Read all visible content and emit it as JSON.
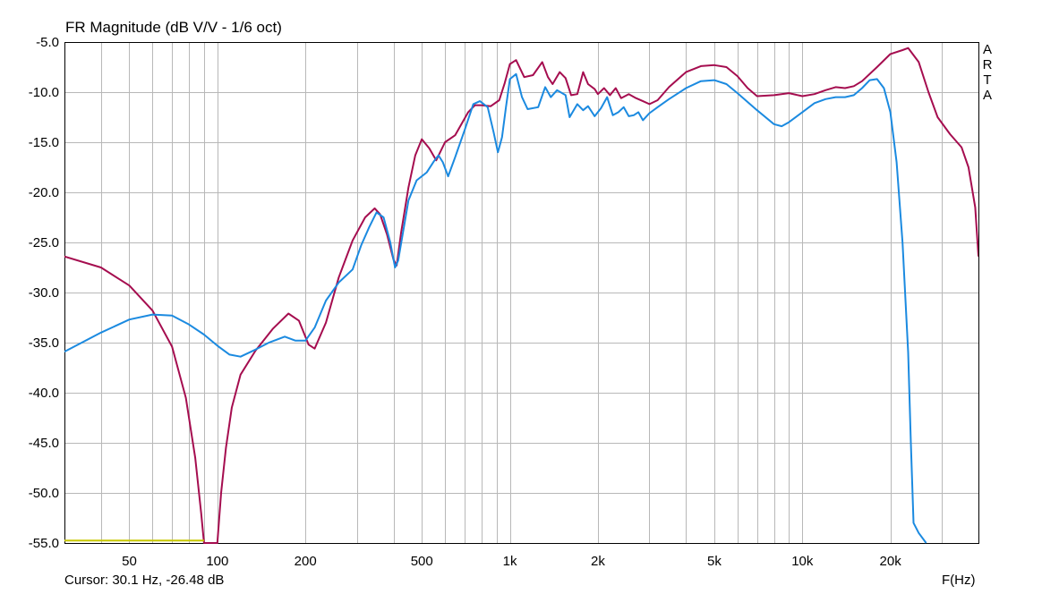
{
  "window": {
    "title": "FR Magnitude (dB V/V - 1/6 oct)"
  },
  "branding": {
    "letters": [
      "A",
      "R",
      "T",
      "A"
    ]
  },
  "status": {
    "cursor": "Cursor: 30.1 Hz, -26.48 dB",
    "x_unit": "F(Hz)"
  },
  "chart_data": {
    "type": "line",
    "title": "FR Magnitude (dB V/V - 1/6 oct)",
    "xlabel": "F(Hz)",
    "ylabel": "",
    "xscale": "log",
    "xlim": [
      30,
      40000
    ],
    "ylim": [
      -55,
      -5
    ],
    "grid": true,
    "x_ticks": [
      50,
      100,
      200,
      500,
      1000,
      2000,
      5000,
      10000,
      20000
    ],
    "x_tick_labels": [
      "50",
      "100",
      "200",
      "500",
      "1k",
      "2k",
      "5k",
      "10k",
      "20k"
    ],
    "y_ticks": [
      -5,
      -10,
      -15,
      -20,
      -25,
      -30,
      -35,
      -40,
      -45,
      -50,
      -55
    ],
    "y_tick_labels": [
      "-5.0",
      "-10.0",
      "-15.0",
      "-20.0",
      "-25.0",
      "-30.0",
      "-35.0",
      "-40.0",
      "-45.0",
      "-50.0",
      "-55.0"
    ],
    "colors": {
      "red_series": "#a50d4f",
      "blue_series": "#1b8ae0",
      "cursor_line": "#c8c800",
      "grid": "#b8b8b8"
    },
    "series": [
      {
        "color": "#a50d4f",
        "points": [
          [
            30,
            -26.4
          ],
          [
            40,
            -27.5
          ],
          [
            50,
            -29.3
          ],
          [
            60,
            -31.8
          ],
          [
            70,
            -35.4
          ],
          [
            78,
            -40.5
          ],
          [
            84,
            -46.5
          ],
          [
            88,
            -52
          ],
          [
            90,
            -55
          ],
          [
            100,
            -55
          ],
          [
            103,
            -50
          ],
          [
            107,
            -45.5
          ],
          [
            112,
            -41.5
          ],
          [
            120,
            -38.2
          ],
          [
            135,
            -35.8
          ],
          [
            155,
            -33.6
          ],
          [
            175,
            -32.1
          ],
          [
            190,
            -32.8
          ],
          [
            205,
            -35.2
          ],
          [
            215,
            -35.6
          ],
          [
            235,
            -33
          ],
          [
            260,
            -28.5
          ],
          [
            290,
            -24.8
          ],
          [
            320,
            -22.5
          ],
          [
            345,
            -21.6
          ],
          [
            360,
            -22.2
          ],
          [
            380,
            -24.2
          ],
          [
            400,
            -26.7
          ],
          [
            410,
            -27.3
          ],
          [
            425,
            -24
          ],
          [
            450,
            -19.5
          ],
          [
            475,
            -16.3
          ],
          [
            500,
            -14.7
          ],
          [
            530,
            -15.6
          ],
          [
            560,
            -16.8
          ],
          [
            600,
            -15
          ],
          [
            650,
            -14.3
          ],
          [
            720,
            -12
          ],
          [
            760,
            -11.3
          ],
          [
            800,
            -11.3
          ],
          [
            860,
            -11.4
          ],
          [
            920,
            -10.8
          ],
          [
            960,
            -9.1
          ],
          [
            1000,
            -7.2
          ],
          [
            1050,
            -6.8
          ],
          [
            1120,
            -8.5
          ],
          [
            1200,
            -8.3
          ],
          [
            1290,
            -7
          ],
          [
            1350,
            -8.5
          ],
          [
            1400,
            -9.2
          ],
          [
            1480,
            -8
          ],
          [
            1550,
            -8.6
          ],
          [
            1620,
            -10.3
          ],
          [
            1700,
            -10.2
          ],
          [
            1780,
            -8
          ],
          [
            1850,
            -9.2
          ],
          [
            1950,
            -9.7
          ],
          [
            2000,
            -10.2
          ],
          [
            2100,
            -9.6
          ],
          [
            2200,
            -10.3
          ],
          [
            2300,
            -9.6
          ],
          [
            2400,
            -10.6
          ],
          [
            2550,
            -10.2
          ],
          [
            2700,
            -10.6
          ],
          [
            2850,
            -10.9
          ],
          [
            3000,
            -11.2
          ],
          [
            3200,
            -10.8
          ],
          [
            3500,
            -9.5
          ],
          [
            4000,
            -8
          ],
          [
            4500,
            -7.4
          ],
          [
            5000,
            -7.3
          ],
          [
            5500,
            -7.5
          ],
          [
            6000,
            -8.4
          ],
          [
            6500,
            -9.6
          ],
          [
            7000,
            -10.4
          ],
          [
            8000,
            -10.3
          ],
          [
            9000,
            -10.1
          ],
          [
            10000,
            -10.4
          ],
          [
            11000,
            -10.2
          ],
          [
            12000,
            -9.8
          ],
          [
            13000,
            -9.5
          ],
          [
            14000,
            -9.6
          ],
          [
            15000,
            -9.4
          ],
          [
            16000,
            -8.9
          ],
          [
            18000,
            -7.5
          ],
          [
            20000,
            -6.2
          ],
          [
            22000,
            -5.8
          ],
          [
            23000,
            -5.6
          ],
          [
            25000,
            -7
          ],
          [
            27000,
            -10
          ],
          [
            29000,
            -12.5
          ],
          [
            32000,
            -14.2
          ],
          [
            35000,
            -15.5
          ],
          [
            37000,
            -17.5
          ],
          [
            39000,
            -21.5
          ],
          [
            40000,
            -26.4
          ]
        ]
      },
      {
        "color": "#1b8ae0",
        "points": [
          [
            30,
            -35.9
          ],
          [
            40,
            -34
          ],
          [
            50,
            -32.7
          ],
          [
            60,
            -32.2
          ],
          [
            70,
            -32.3
          ],
          [
            80,
            -33.2
          ],
          [
            90,
            -34.2
          ],
          [
            100,
            -35.3
          ],
          [
            110,
            -36.2
          ],
          [
            120,
            -36.4
          ],
          [
            135,
            -35.7
          ],
          [
            150,
            -35
          ],
          [
            170,
            -34.4
          ],
          [
            185,
            -34.8
          ],
          [
            200,
            -34.8
          ],
          [
            215,
            -33.5
          ],
          [
            235,
            -30.8
          ],
          [
            260,
            -29
          ],
          [
            290,
            -27.7
          ],
          [
            310,
            -25.3
          ],
          [
            330,
            -23.5
          ],
          [
            350,
            -22
          ],
          [
            370,
            -22.5
          ],
          [
            390,
            -25
          ],
          [
            405,
            -27.5
          ],
          [
            415,
            -26.8
          ],
          [
            430,
            -24.2
          ],
          [
            450,
            -20.8
          ],
          [
            480,
            -18.8
          ],
          [
            520,
            -18
          ],
          [
            550,
            -16.9
          ],
          [
            570,
            -16.3
          ],
          [
            590,
            -17
          ],
          [
            615,
            -18.4
          ],
          [
            650,
            -16.5
          ],
          [
            700,
            -13.8
          ],
          [
            750,
            -11.2
          ],
          [
            790,
            -10.9
          ],
          [
            840,
            -11.5
          ],
          [
            880,
            -14
          ],
          [
            910,
            -16
          ],
          [
            940,
            -14.5
          ],
          [
            970,
            -11.5
          ],
          [
            1000,
            -8.7
          ],
          [
            1050,
            -8.2
          ],
          [
            1100,
            -10.5
          ],
          [
            1150,
            -11.7
          ],
          [
            1250,
            -11.5
          ],
          [
            1320,
            -9.5
          ],
          [
            1380,
            -10.5
          ],
          [
            1450,
            -9.8
          ],
          [
            1550,
            -10.3
          ],
          [
            1600,
            -12.5
          ],
          [
            1700,
            -11.2
          ],
          [
            1780,
            -11.8
          ],
          [
            1850,
            -11.4
          ],
          [
            1950,
            -12.4
          ],
          [
            2050,
            -11.6
          ],
          [
            2150,
            -10.5
          ],
          [
            2250,
            -12.3
          ],
          [
            2350,
            -12
          ],
          [
            2450,
            -11.5
          ],
          [
            2550,
            -12.4
          ],
          [
            2650,
            -12.3
          ],
          [
            2750,
            -12
          ],
          [
            2850,
            -12.8
          ],
          [
            3000,
            -12.1
          ],
          [
            3200,
            -11.5
          ],
          [
            3500,
            -10.7
          ],
          [
            4000,
            -9.6
          ],
          [
            4500,
            -8.9
          ],
          [
            5000,
            -8.8
          ],
          [
            5500,
            -9.2
          ],
          [
            6000,
            -10.1
          ],
          [
            7000,
            -11.8
          ],
          [
            8000,
            -13.2
          ],
          [
            8500,
            -13.4
          ],
          [
            9000,
            -13
          ],
          [
            10000,
            -12
          ],
          [
            11000,
            -11.1
          ],
          [
            12000,
            -10.7
          ],
          [
            13000,
            -10.5
          ],
          [
            14000,
            -10.5
          ],
          [
            15000,
            -10.3
          ],
          [
            16000,
            -9.6
          ],
          [
            17000,
            -8.8
          ],
          [
            18000,
            -8.7
          ],
          [
            19000,
            -9.6
          ],
          [
            20000,
            -12
          ],
          [
            21000,
            -17
          ],
          [
            22000,
            -25
          ],
          [
            23000,
            -36
          ],
          [
            23500,
            -45
          ],
          [
            24000,
            -53
          ],
          [
            25000,
            -54
          ],
          [
            26500,
            -55
          ]
        ]
      },
      {
        "color": "#c8c800",
        "points": [
          [
            30,
            -54.75
          ],
          [
            90,
            -54.75
          ]
        ]
      }
    ]
  }
}
